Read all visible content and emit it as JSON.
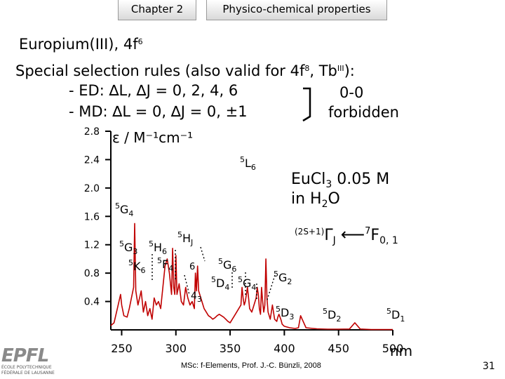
{
  "header": {
    "chapter_tab": "Chapter 2",
    "section_tab": "Physico-chemical properties"
  },
  "title": {
    "line1_text": "Europium(III), 4f",
    "line1_sup": "6",
    "line2_text": "Special selection rules (also valid for 4f",
    "line2_sup1": "8",
    "line2_mid": ", Tb",
    "line2_sup2": "III",
    "line2_end": "):",
    "rule_ed": "- ED: ∆L, ∆J = 0, 2, 4, 6",
    "rule_md": "- MD: ∆L = 0, ∆J = 0, ±1",
    "transition": "0-0",
    "forbidden": "forbidden"
  },
  "chart_data": {
    "type": "line",
    "title": "",
    "ylabel": "ε / M⁻¹cm⁻¹",
    "xlabel": "nm",
    "xlim": [
      240,
      500
    ],
    "ylim": [
      0,
      2.8
    ],
    "x_ticks": [
      250,
      300,
      350,
      400,
      450,
      500
    ],
    "y_ticks": [
      0.4,
      0.8,
      1.2,
      1.6,
      2.0,
      2.4,
      2.8
    ],
    "x_tick_labels": [
      "250",
      "300",
      "350",
      "400",
      "450",
      "500"
    ],
    "y_tick_labels": [
      "0.4",
      "0.8",
      "1.2",
      "1.6",
      "2.0",
      "2.4",
      "2.8"
    ],
    "series": [
      {
        "name": "EuCl3 0.05 M in H2O",
        "x": [
          240,
          243,
          246,
          249,
          250,
          252,
          255,
          257,
          259,
          261,
          262,
          263,
          265,
          268,
          270,
          272,
          274,
          276,
          278,
          280,
          282,
          284,
          286,
          288,
          290,
          292,
          294,
          296,
          297,
          298,
          299,
          300,
          301,
          303,
          305,
          307,
          309,
          311,
          313,
          315,
          317,
          318,
          319,
          320,
          321,
          322,
          324,
          326,
          328,
          330,
          332,
          334,
          336,
          338,
          340,
          342,
          344,
          346,
          348,
          350,
          352,
          354,
          356,
          358,
          360,
          361,
          362,
          363,
          364,
          365,
          366,
          367,
          368,
          370,
          372,
          374,
          375,
          376,
          377,
          378,
          379,
          380,
          381,
          382,
          383,
          384,
          385,
          387,
          389,
          391,
          393,
          394,
          395,
          396,
          397,
          398,
          400,
          405,
          410,
          413,
          415,
          420,
          430,
          440,
          450,
          460,
          465,
          470,
          480,
          490,
          500
        ],
        "y": [
          0.06,
          0.1,
          0.3,
          0.5,
          0.35,
          0.2,
          0.18,
          0.3,
          0.45,
          0.6,
          1.5,
          0.55,
          0.35,
          0.55,
          0.25,
          0.4,
          0.2,
          0.3,
          0.15,
          0.45,
          0.35,
          0.4,
          0.3,
          0.6,
          0.9,
          1.0,
          0.8,
          0.5,
          1.15,
          0.6,
          0.5,
          1.05,
          0.5,
          0.65,
          0.4,
          0.35,
          0.6,
          0.45,
          0.35,
          0.4,
          0.3,
          0.8,
          0.55,
          0.9,
          0.55,
          0.5,
          0.4,
          0.3,
          0.25,
          0.2,
          0.18,
          0.15,
          0.17,
          0.2,
          0.22,
          0.2,
          0.18,
          0.15,
          0.12,
          0.1,
          0.15,
          0.2,
          0.25,
          0.3,
          0.35,
          0.6,
          0.45,
          0.35,
          0.4,
          0.5,
          0.6,
          0.45,
          0.3,
          0.25,
          0.35,
          0.45,
          0.6,
          0.5,
          0.3,
          0.22,
          0.6,
          0.4,
          0.25,
          0.35,
          1.0,
          0.45,
          0.25,
          0.15,
          0.35,
          0.15,
          0.12,
          0.18,
          0.22,
          0.18,
          0.14,
          0.08,
          0.05,
          0.03,
          0.02,
          0.03,
          0.2,
          0.03,
          0.015,
          0.01,
          0.01,
          0.012,
          0.1,
          0.012,
          0.005,
          0.005,
          0.005
        ]
      }
    ],
    "legend_line1": "EuCl",
    "legend_sub1": "3",
    "legend_conc": "0.05 M",
    "legend_line2": "in H",
    "legend_sub2": "2",
    "legend_end": "O",
    "notation_prefix": "(2S+1)",
    "notation_gamma": "Γ",
    "notation_sub_j": "J",
    "notation_arrow": "⟵",
    "notation_sup7": "7",
    "notation_f": "F",
    "notation_sub_01": "0, 1",
    "annotations": [
      {
        "mult": "5",
        "term": "L",
        "j": "6"
      },
      {
        "mult": "5",
        "term": "G",
        "j": "4"
      },
      {
        "mult": "5",
        "term": "H",
        "j": "J"
      },
      {
        "mult": "5",
        "term": "G",
        "j": "3"
      },
      {
        "mult": "5",
        "term": "H",
        "j": "6"
      },
      {
        "mult": "5",
        "term": "K",
        "j": "6"
      },
      {
        "mult": "5",
        "term": "F",
        "j": "4"
      },
      {
        "mult": "",
        "term": "6",
        "j": ""
      },
      {
        "mult": "",
        "term": "4",
        "j": "3"
      },
      {
        "mult": "5",
        "term": "G",
        "j": "6"
      },
      {
        "mult": "5",
        "term": "D",
        "j": "4"
      },
      {
        "mult": "5",
        "term": "G",
        "j": "4"
      },
      {
        "mult": "5",
        "term": "G",
        "j": "2"
      },
      {
        "mult": "5",
        "term": "D",
        "j": "3"
      },
      {
        "mult": "5",
        "term": "D",
        "j": "2"
      },
      {
        "mult": "5",
        "term": "D",
        "j": "1"
      }
    ]
  },
  "footer": {
    "credit": "MSc: f-Elements,  Prof. J.-C. Bünzli, 2008",
    "page_number": "31",
    "logo_text": "EPFL",
    "logo_line1": "ÉCOLE POLYTECHNIQUE",
    "logo_line2": "FÉDÉRALE DE LAUSANNE"
  }
}
